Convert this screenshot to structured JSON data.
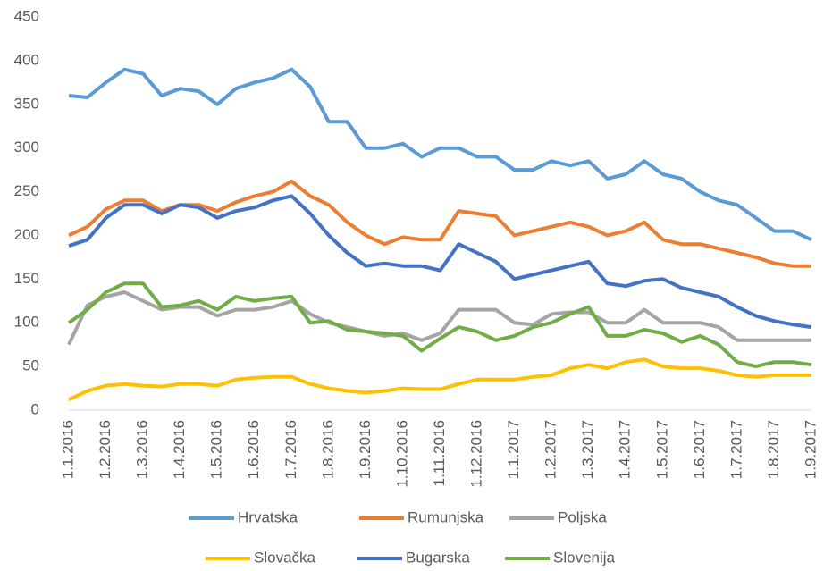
{
  "chart_data": {
    "type": "line",
    "categories": [
      "1.1.2016",
      null,
      "1.2.2016",
      null,
      "1.3.2016",
      null,
      "1.4.2016",
      null,
      "1.5.2016",
      null,
      "1.6.2016",
      null,
      "1.7.2016",
      null,
      "1.8.2016",
      null,
      "1.9.2016",
      null,
      "1.10.2016",
      null,
      "1.11.2016",
      null,
      "1.12.2016",
      null,
      "1.1.2017",
      null,
      "1.2.2017",
      null,
      "1.3.2017",
      null,
      "1.4.2017",
      null,
      "1.5.2017",
      null,
      "1.6.2017",
      null,
      "1.7.2017",
      null,
      "1.8.2017",
      null,
      "1.9.2017"
    ],
    "series": [
      {
        "name": "Hrvatska",
        "color": "#5b9bd5",
        "values": [
          360,
          358,
          375,
          390,
          385,
          360,
          368,
          365,
          350,
          368,
          375,
          380,
          390,
          370,
          330,
          330,
          300,
          300,
          305,
          290,
          300,
          300,
          290,
          290,
          275,
          275,
          285,
          280,
          285,
          265,
          270,
          285,
          270,
          265,
          250,
          240,
          235,
          220,
          205,
          205,
          195
        ]
      },
      {
        "name": "Rumunjska",
        "color": "#ed7d31",
        "values": [
          200,
          210,
          230,
          240,
          240,
          228,
          235,
          235,
          228,
          238,
          245,
          250,
          262,
          245,
          235,
          215,
          200,
          190,
          198,
          195,
          195,
          228,
          225,
          222,
          200,
          205,
          210,
          215,
          210,
          200,
          205,
          215,
          195,
          190,
          190,
          185,
          180,
          175,
          168,
          165,
          165
        ]
      },
      {
        "name": "Poljska",
        "color": "#a5a5a5",
        "values": [
          75,
          120,
          130,
          135,
          125,
          115,
          118,
          118,
          108,
          115,
          115,
          118,
          125,
          110,
          100,
          95,
          90,
          85,
          88,
          80,
          88,
          115,
          115,
          115,
          100,
          98,
          110,
          112,
          112,
          100,
          100,
          115,
          100,
          100,
          100,
          95,
          80,
          80,
          80,
          80,
          80
        ]
      },
      {
        "name": "Slovačka",
        "color": "#ffc000",
        "values": [
          12,
          22,
          28,
          30,
          28,
          27,
          30,
          30,
          28,
          35,
          37,
          38,
          38,
          30,
          25,
          22,
          20,
          22,
          25,
          24,
          24,
          30,
          35,
          35,
          35,
          38,
          40,
          48,
          52,
          48,
          55,
          58,
          50,
          48,
          48,
          45,
          40,
          38,
          40,
          40,
          40
        ]
      },
      {
        "name": "Bugarska",
        "color": "#4472c4",
        "values": [
          188,
          195,
          220,
          235,
          235,
          225,
          235,
          232,
          220,
          228,
          232,
          240,
          245,
          225,
          200,
          180,
          165,
          168,
          165,
          165,
          160,
          190,
          180,
          170,
          150,
          155,
          160,
          165,
          170,
          145,
          142,
          148,
          150,
          140,
          135,
          130,
          118,
          108,
          102,
          98,
          95
        ]
      },
      {
        "name": "Slovenija",
        "color": "#70ad47",
        "values": [
          100,
          115,
          135,
          145,
          145,
          118,
          120,
          125,
          115,
          130,
          125,
          128,
          130,
          100,
          102,
          92,
          90,
          88,
          85,
          68,
          82,
          95,
          90,
          80,
          85,
          95,
          100,
          110,
          118,
          85,
          85,
          92,
          88,
          78,
          85,
          75,
          55,
          50,
          55,
          55,
          52
        ]
      }
    ],
    "ylim": [
      0,
      450
    ],
    "yticks": [
      0,
      50,
      100,
      150,
      200,
      250,
      300,
      350,
      400,
      450
    ],
    "grid": false,
    "legend": "bottom"
  }
}
